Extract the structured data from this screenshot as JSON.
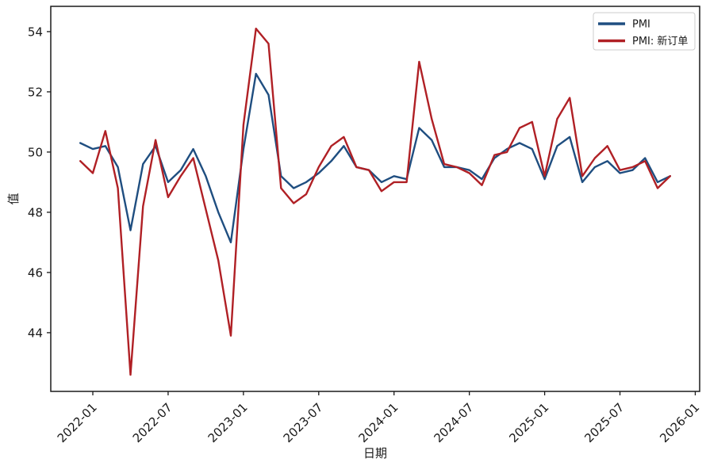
{
  "figure": {
    "background": "#ffffff",
    "spine_color": "#1a1a1a",
    "tick_color": "#1a1a1a"
  },
  "chart_data": {
    "type": "line",
    "title": "",
    "xlabel": "日期",
    "ylabel": "值",
    "grid": false,
    "legend_position": "upper right",
    "ylim": [
      42.05,
      54.84
    ],
    "y_ticks": [
      44,
      46,
      48,
      50,
      52,
      54
    ],
    "x_ticks": [
      "2022-01",
      "2022-07",
      "2023-01",
      "2023-07",
      "2024-01",
      "2024-07",
      "2025-01",
      "2025-07",
      "2026-01"
    ],
    "x": [
      "2021-12",
      "2022-01",
      "2022-02",
      "2022-03",
      "2022-04",
      "2022-05",
      "2022-06",
      "2022-07",
      "2022-08",
      "2022-09",
      "2022-10",
      "2022-11",
      "2022-12",
      "2023-01",
      "2023-02",
      "2023-03",
      "2023-04",
      "2023-05",
      "2023-06",
      "2023-07",
      "2023-08",
      "2023-09",
      "2023-10",
      "2023-11",
      "2023-12",
      "2024-01",
      "2024-02",
      "2024-03",
      "2024-04",
      "2024-05",
      "2024-06",
      "2024-07",
      "2024-08",
      "2024-09",
      "2024-10",
      "2024-11",
      "2024-12",
      "2025-01",
      "2025-02",
      "2025-03",
      "2025-04",
      "2025-05",
      "2025-06",
      "2025-07",
      "2025-08",
      "2025-09",
      "2025-10",
      "2025-11"
    ],
    "series": [
      {
        "name": "PMI",
        "color": "#1f4e80",
        "values": [
          50.3,
          50.1,
          50.2,
          49.5,
          47.4,
          49.6,
          50.2,
          49.0,
          49.4,
          50.1,
          49.2,
          48.0,
          47.0,
          50.1,
          52.6,
          51.9,
          49.2,
          48.8,
          49.0,
          49.3,
          49.7,
          50.2,
          49.5,
          49.4,
          49.0,
          49.2,
          49.1,
          50.8,
          50.4,
          49.5,
          49.5,
          49.4,
          49.1,
          49.8,
          50.1,
          50.3,
          50.1,
          49.1,
          50.2,
          50.5,
          49.0,
          49.5,
          49.7,
          49.3,
          49.4,
          49.8,
          49.0,
          49.2
        ]
      },
      {
        "name": "PMI: 新订单",
        "color": "#b02025",
        "values": [
          49.7,
          49.3,
          50.7,
          48.8,
          42.6,
          48.2,
          50.4,
          48.5,
          49.2,
          49.8,
          48.1,
          46.4,
          43.9,
          50.9,
          54.1,
          53.6,
          48.8,
          48.3,
          48.6,
          49.5,
          50.2,
          50.5,
          49.5,
          49.4,
          48.7,
          49.0,
          49.0,
          53.0,
          51.1,
          49.6,
          49.5,
          49.3,
          48.9,
          49.9,
          50.0,
          50.8,
          51.0,
          49.2,
          51.1,
          51.8,
          49.2,
          49.8,
          50.2,
          49.4,
          49.5,
          49.7,
          48.8,
          49.2
        ]
      }
    ]
  }
}
